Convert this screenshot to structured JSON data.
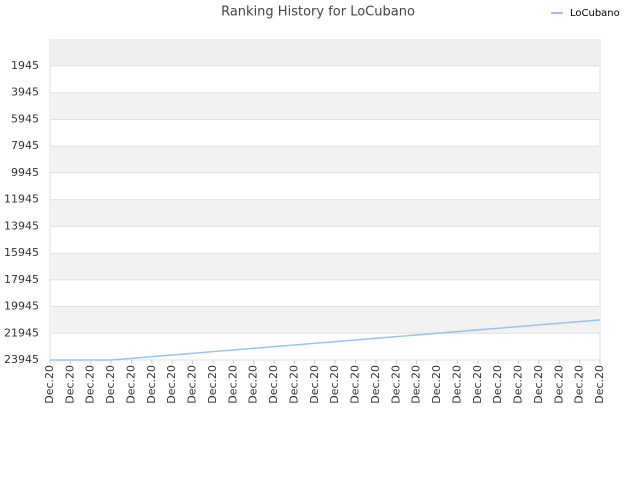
{
  "chart_data": {
    "type": "line",
    "title": "Ranking History for LoCubano",
    "categories": [
      "Dec.20",
      "Dec.20",
      "Dec.20",
      "Dec.20",
      "Dec.20",
      "Dec.20",
      "Dec.20",
      "Dec.20",
      "Dec.20",
      "Dec.20",
      "Dec.20",
      "Dec.20",
      "Dec.20",
      "Dec.20",
      "Dec.20",
      "Dec.20",
      "Dec.20",
      "Dec.20",
      "Dec.20",
      "Dec.20",
      "Dec.20",
      "Dec.20",
      "Dec.20",
      "Dec.20",
      "Dec.20",
      "Dec.20",
      "Dec.20",
      "Dec.20"
    ],
    "series": [
      {
        "name": "LoCubano",
        "color": "#99c4ee",
        "values": [
          23945,
          23945,
          23945,
          23945,
          23820,
          23695,
          23570,
          23445,
          23320,
          23195,
          23070,
          22945,
          22820,
          22695,
          22570,
          22445,
          22320,
          22195,
          22070,
          21945,
          21820,
          21695,
          21570,
          21445,
          21320,
          21195,
          21070,
          20945
        ]
      }
    ],
    "ylim": [
      23945,
      0
    ],
    "yticks": [
      1945,
      3945,
      5945,
      7945,
      9945,
      11945,
      13945,
      15945,
      17945,
      19945,
      21945,
      23945
    ],
    "grid": true,
    "legend": "top-right"
  }
}
